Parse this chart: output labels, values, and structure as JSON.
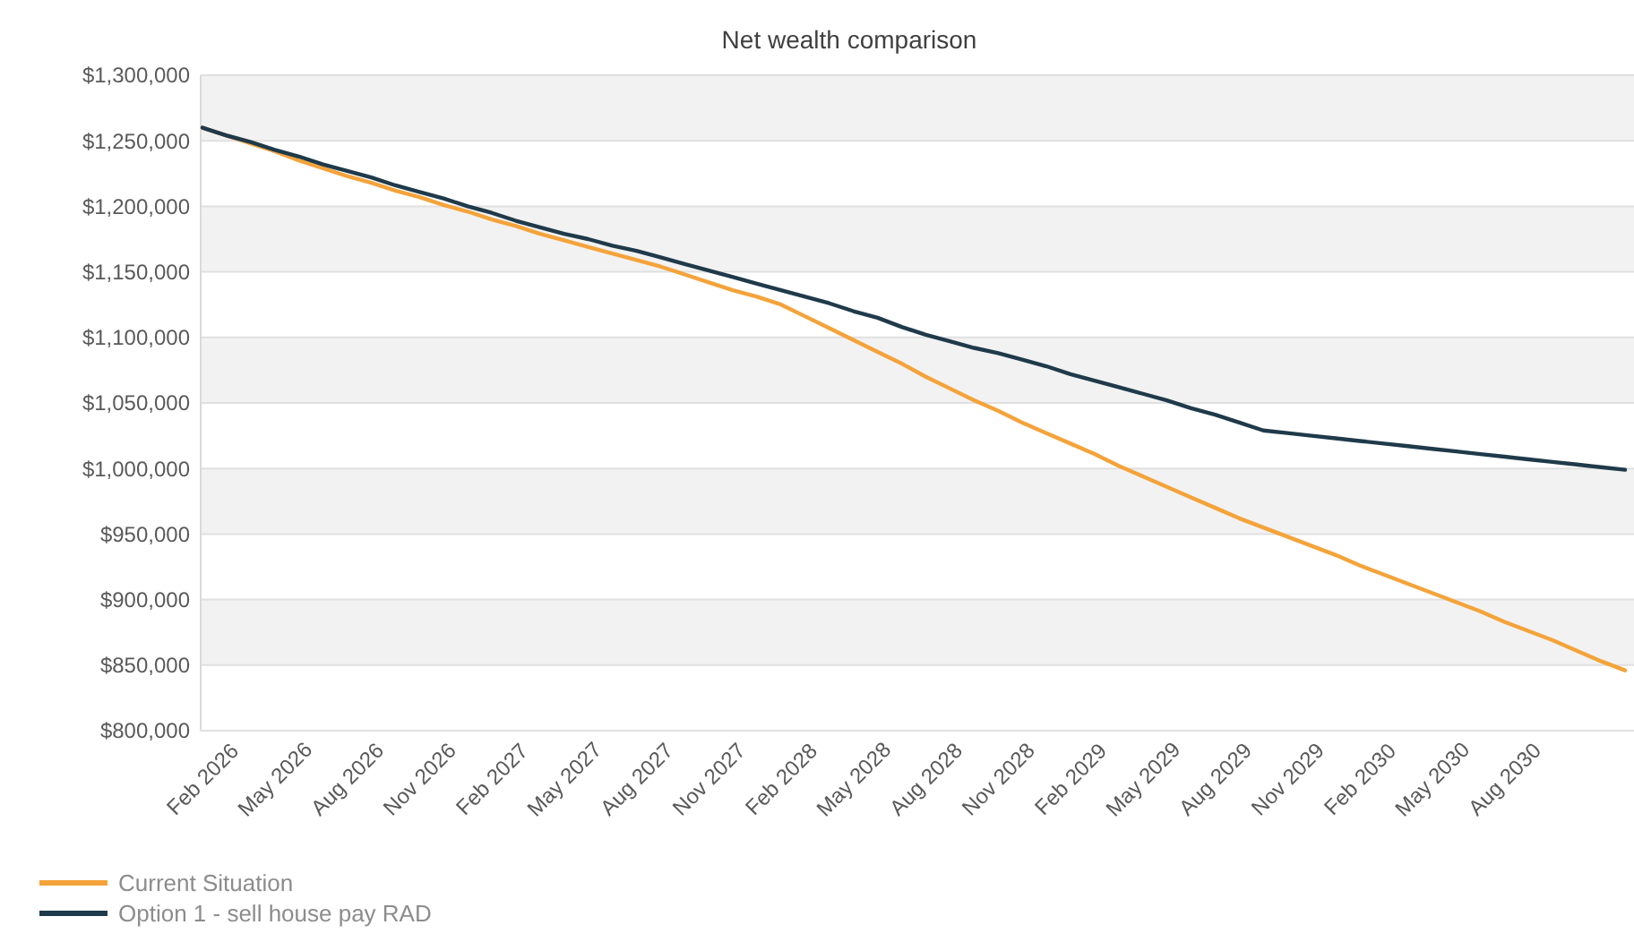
{
  "chart_data": {
    "type": "line",
    "title": "Net wealth comparison",
    "categories": [
      "Feb 2026",
      null,
      null,
      "May 2026",
      null,
      null,
      "Aug 2026",
      null,
      null,
      "Nov 2026",
      null,
      null,
      "Feb 2027",
      null,
      null,
      "May 2027",
      null,
      null,
      "Aug 2027",
      null,
      null,
      "Nov 2027",
      null,
      null,
      "Feb 2028",
      null,
      null,
      "May 2028",
      null,
      null,
      "Aug 2028",
      null,
      null,
      "Nov 2028",
      null,
      null,
      "Feb 2029",
      null,
      null,
      "May 2029",
      null,
      null,
      "Aug 2029",
      null,
      null,
      "Nov 2029",
      null,
      null,
      "Feb 2030",
      null,
      null,
      "May 2030",
      null,
      null,
      "Aug 2030",
      null,
      null,
      null,
      null,
      null
    ],
    "series": [
      {
        "name": "Current Situation",
        "color": "#f4a33a",
        "values": [
          1260000,
          1254000,
          1248000,
          1242000,
          1235000,
          1229000,
          1223000,
          1218000,
          1212000,
          1207000,
          1201000,
          1196000,
          1190000,
          1185000,
          1179000,
          1174000,
          1169000,
          1164000,
          1159000,
          1154000,
          1148000,
          1142000,
          1136000,
          1131000,
          1125000,
          1116000,
          1107000,
          1098000,
          1089000,
          1080000,
          1070000,
          1061000,
          1052000,
          1044000,
          1035000,
          1027000,
          1019000,
          1011000,
          1002000,
          994000,
          986000,
          978000,
          970000,
          962000,
          955000,
          948000,
          941000,
          934000,
          926000,
          919000,
          912000,
          905000,
          898000,
          891000,
          883000,
          876000,
          869000,
          861000,
          853000,
          846000
        ]
      },
      {
        "name": "Option 1 - sell house pay RAD",
        "color": "#1f3a4a",
        "values": [
          1260000,
          1254000,
          1249000,
          1243000,
          1238000,
          1232000,
          1227000,
          1222000,
          1216000,
          1211000,
          1206000,
          1200000,
          1195000,
          1189000,
          1184000,
          1179000,
          1175000,
          1170000,
          1166000,
          1161000,
          1156000,
          1151000,
          1146000,
          1141000,
          1136000,
          1131000,
          1126000,
          1120000,
          1115000,
          1108000,
          1102000,
          1097000,
          1092000,
          1088000,
          1083000,
          1078000,
          1072000,
          1067000,
          1062000,
          1057000,
          1052000,
          1046000,
          1041000,
          1035000,
          1029000,
          1027000,
          1025000,
          1023000,
          1021000,
          1019000,
          1017000,
          1015000,
          1013000,
          1011000,
          1009000,
          1007000,
          1005000,
          1003000,
          1001000,
          999000
        ]
      }
    ],
    "ylim": [
      800000,
      1300000
    ],
    "yticks": [
      {
        "value": 800000,
        "label": "$800,000"
      },
      {
        "value": 850000,
        "label": "$850,000"
      },
      {
        "value": 900000,
        "label": "$900,000"
      },
      {
        "value": 950000,
        "label": "$950,000"
      },
      {
        "value": 1000000,
        "label": "$1,000,000"
      },
      {
        "value": 1050000,
        "label": "$1,050,000"
      },
      {
        "value": 1100000,
        "label": "$1,100,000"
      },
      {
        "value": 1150000,
        "label": "$1,150,000"
      },
      {
        "value": 1200000,
        "label": "$1,200,000"
      },
      {
        "value": 1250000,
        "label": "$1,250,000"
      },
      {
        "value": 1300000,
        "label": "$1,300,000"
      }
    ],
    "grid": "y",
    "legend": "bottom left",
    "marker": "none",
    "line_style": "solid"
  }
}
